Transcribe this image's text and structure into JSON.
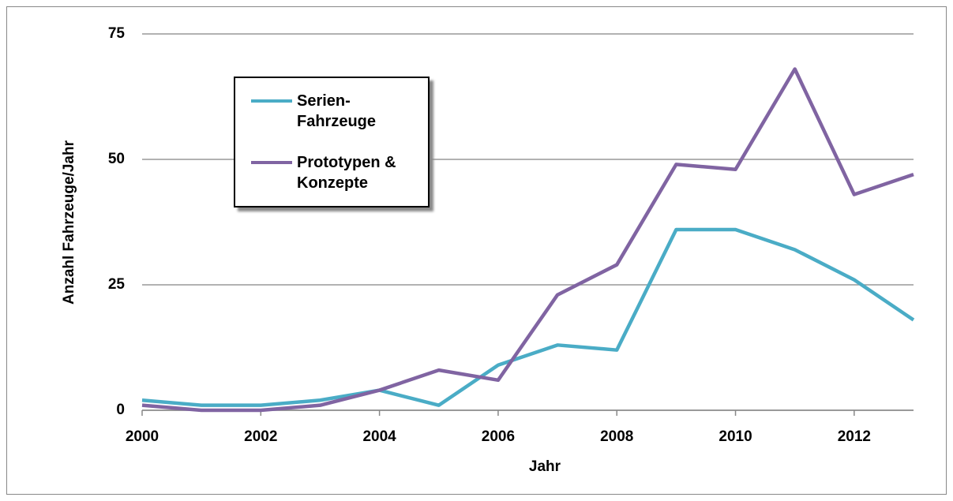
{
  "chart_data": {
    "type": "line",
    "x_label": "Jahr",
    "y_label": "Anzahl Fahrzeuge/Jahr",
    "x": [
      2000,
      2001,
      2002,
      2003,
      2004,
      2005,
      2006,
      2007,
      2008,
      2009,
      2010,
      2011,
      2012,
      2013
    ],
    "series": [
      {
        "name": "Serien-Fahrzeuge",
        "color": "#4aacc6",
        "values": [
          2,
          1,
          1,
          2,
          4,
          1,
          9,
          13,
          12,
          36,
          36,
          32,
          26,
          18
        ]
      },
      {
        "name": "Prototypen & Konzepte",
        "color": "#8064a2",
        "values": [
          1,
          0,
          0,
          1,
          4,
          8,
          6,
          23,
          29,
          49,
          48,
          68,
          43,
          47
        ]
      }
    ],
    "xlim": [
      2000,
      2013
    ],
    "xticks": [
      2000,
      2002,
      2004,
      2006,
      2008,
      2010,
      2012
    ],
    "ylim": [
      0,
      75
    ],
    "yticks": [
      0,
      25,
      50,
      75
    ],
    "grid": true,
    "legend": "upper left"
  }
}
